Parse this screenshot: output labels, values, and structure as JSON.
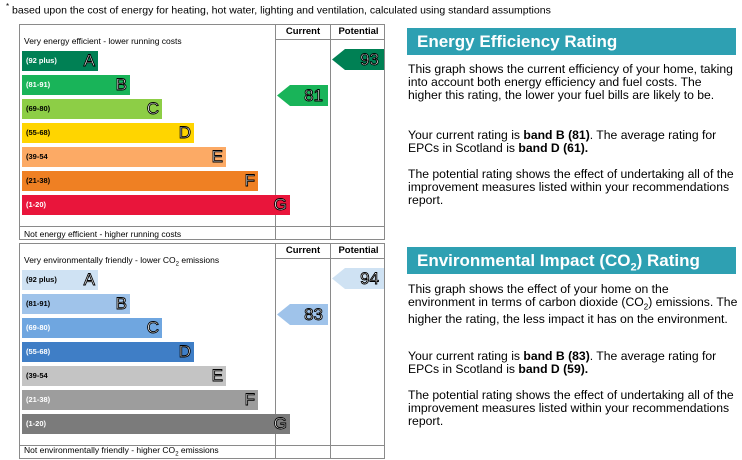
{
  "footnote": {
    "star": "*",
    "text": "based upon the cost of energy for heating, hot water, lighting and ventilation, calculated using standard assumptions"
  },
  "energy": {
    "headers": {
      "current": "Current",
      "potential": "Potential"
    },
    "top_label": "Very energy efficient - lower running costs",
    "bottom_label": "Not energy efficient - higher running costs",
    "bands": [
      {
        "range": "(92 plus)",
        "letter": "A",
        "color": "#008054"
      },
      {
        "range": "(81-91)",
        "letter": "B",
        "color": "#19b459"
      },
      {
        "range": "(69-80)",
        "letter": "C",
        "color": "#8dce46"
      },
      {
        "range": "(55-68)",
        "letter": "D",
        "color": "#ffd500"
      },
      {
        "range": "(39-54",
        "letter": "E",
        "color": "#fcaa65"
      },
      {
        "range": "(21-38)",
        "letter": "F",
        "color": "#ef8023"
      },
      {
        "range": "(1-20)",
        "letter": "G",
        "color": "#e9153b"
      }
    ],
    "current": {
      "value": "81",
      "band": "B",
      "color": "#19b459"
    },
    "potential": {
      "value": "93",
      "band": "A",
      "color": "#008054"
    },
    "title": "Energy Efficiency Rating",
    "para1": "This graph shows the current efficiency of your home, taking into account both energy efficiency and fuel costs. The higher this rating, the lower your fuel bills are likely to be.",
    "para2_pre": "Your current rating is ",
    "para2_band": "band B (81)",
    "para2_mid": ". The average rating for EPCs in Scotland is ",
    "para2_avg": "band D (61).",
    "para3": "The potential rating shows the effect of undertaking all of the improvement measures listed within your recommendations report."
  },
  "environment": {
    "headers": {
      "current": "Current",
      "potential": "Potential"
    },
    "top_label_pre": "Very environmentally friendly - lower CO",
    "top_label_sub": "2",
    "top_label_post": " emissions",
    "bottom_label_pre": "Not environmentally friendly - higher CO",
    "bottom_label_sub": "2",
    "bottom_label_post": " emissions",
    "bands": [
      {
        "range": "(92 plus)",
        "letter": "A",
        "color": "#cfe2f3"
      },
      {
        "range": "(81-91)",
        "letter": "B",
        "color": "#9fc3ea"
      },
      {
        "range": "(69-80)",
        "letter": "C",
        "color": "#6fa6e0"
      },
      {
        "range": "(55-68)",
        "letter": "D",
        "color": "#3f7ec6"
      },
      {
        "range": "(39-54",
        "letter": "E",
        "color": "#c4c4c4"
      },
      {
        "range": "(21-38)",
        "letter": "F",
        "color": "#9d9d9d"
      },
      {
        "range": "(1-20)",
        "letter": "G",
        "color": "#7b7b7b"
      }
    ],
    "current": {
      "value": "83",
      "band": "B",
      "color": "#9fc3ea"
    },
    "potential": {
      "value": "94",
      "band": "A",
      "color": "#cfe2f3"
    },
    "title_pre": "Environmental Impact (CO",
    "title_sub": "2",
    "title_post": ") Rating",
    "para1_pre": "This graph shows the effect of your home on the environment in terms of carbon dioxide (CO",
    "para1_sub": "2",
    "para1_post": ") emissions. The higher the rating, the less impact it has on the environment.",
    "para2_pre": "Your current rating is ",
    "para2_band": "band B (83)",
    "para2_mid": ". The average rating for EPCs in Scotland is ",
    "para2_avg": "band D (59).",
    "para3": "The potential rating shows the effect of undertaking all of the improvement measures listed within your recommendations report."
  }
}
